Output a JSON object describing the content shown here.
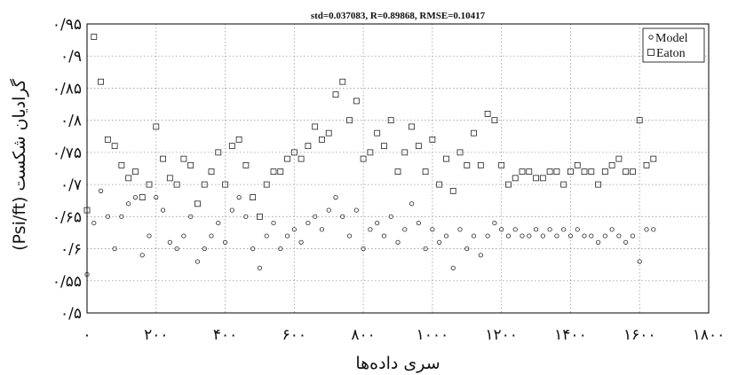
{
  "chart_data": {
    "type": "scatter",
    "title": "std=0.037083, R=0.89868, RMSE=0.10417",
    "xlabel": "سری داده‌ها",
    "ylabel": "گرادیان شکست  (Psi/ft)",
    "xlim": [
      0,
      1800
    ],
    "ylim": [
      0.5,
      0.95
    ],
    "x_ticks": [
      0,
      200,
      400,
      600,
      800,
      1000,
      1200,
      1400,
      1600,
      1800
    ],
    "x_tick_labels": [
      "۰",
      "۲۰۰",
      "۴۰۰",
      "۶۰۰",
      "۸۰۰",
      "۱۰۰۰",
      "۱۲۰۰",
      "۱۴۰۰",
      "۱۶۰۰",
      "۱۸۰۰"
    ],
    "y_ticks": [
      0.5,
      0.55,
      0.6,
      0.65,
      0.7,
      0.75,
      0.8,
      0.85,
      0.9,
      0.95
    ],
    "y_tick_labels": [
      "۰/۵",
      "۰/۵۵",
      "۰/۶",
      "۰/۶۵",
      "۰/۷",
      "۰/۷۵",
      "۰/۸",
      "۰/۸۵",
      "۰/۹",
      "۰/۹۵"
    ],
    "grid": true,
    "legend_position": "top-right",
    "series": [
      {
        "name": "Model",
        "marker": "circle",
        "x": [
          0,
          20,
          40,
          60,
          80,
          100,
          120,
          140,
          160,
          180,
          200,
          220,
          240,
          260,
          280,
          300,
          320,
          340,
          360,
          380,
          400,
          420,
          440,
          460,
          480,
          500,
          520,
          540,
          560,
          580,
          600,
          620,
          640,
          660,
          680,
          700,
          720,
          740,
          760,
          780,
          800,
          820,
          840,
          860,
          880,
          900,
          920,
          940,
          960,
          980,
          1000,
          1020,
          1040,
          1060,
          1080,
          1100,
          1120,
          1140,
          1160,
          1180,
          1200,
          1220,
          1240,
          1260,
          1280,
          1300,
          1320,
          1340,
          1360,
          1380,
          1400,
          1420,
          1440,
          1460,
          1480,
          1500,
          1520,
          1540,
          1560,
          1580,
          1600,
          1620,
          1640
        ],
        "y": [
          0.56,
          0.64,
          0.69,
          0.65,
          0.6,
          0.65,
          0.67,
          0.68,
          0.59,
          0.62,
          0.68,
          0.66,
          0.61,
          0.6,
          0.62,
          0.65,
          0.58,
          0.6,
          0.62,
          0.64,
          0.61,
          0.66,
          0.68,
          0.65,
          0.6,
          0.57,
          0.62,
          0.64,
          0.6,
          0.62,
          0.63,
          0.61,
          0.64,
          0.65,
          0.63,
          0.66,
          0.68,
          0.65,
          0.62,
          0.66,
          0.6,
          0.63,
          0.64,
          0.62,
          0.65,
          0.61,
          0.63,
          0.67,
          0.64,
          0.6,
          0.63,
          0.61,
          0.62,
          0.57,
          0.63,
          0.6,
          0.62,
          0.59,
          0.62,
          0.64,
          0.63,
          0.62,
          0.63,
          0.62,
          0.62,
          0.63,
          0.62,
          0.63,
          0.62,
          0.63,
          0.62,
          0.63,
          0.62,
          0.62,
          0.61,
          0.62,
          0.63,
          0.62,
          0.61,
          0.62,
          0.58,
          0.63,
          0.63
        ]
      },
      {
        "name": "Eaton",
        "marker": "square",
        "x": [
          0,
          20,
          40,
          60,
          80,
          100,
          120,
          140,
          160,
          180,
          200,
          220,
          240,
          260,
          280,
          300,
          320,
          340,
          360,
          380,
          400,
          420,
          440,
          460,
          480,
          500,
          520,
          540,
          560,
          580,
          600,
          620,
          640,
          660,
          680,
          700,
          720,
          740,
          760,
          780,
          800,
          820,
          840,
          860,
          880,
          900,
          920,
          940,
          960,
          980,
          1000,
          1020,
          1040,
          1060,
          1080,
          1100,
          1120,
          1140,
          1160,
          1180,
          1200,
          1220,
          1240,
          1260,
          1280,
          1300,
          1320,
          1340,
          1360,
          1380,
          1400,
          1420,
          1440,
          1460,
          1480,
          1500,
          1520,
          1540,
          1560,
          1580,
          1600,
          1620,
          1640
        ],
        "y": [
          0.66,
          0.93,
          0.86,
          0.77,
          0.76,
          0.73,
          0.71,
          0.72,
          0.68,
          0.7,
          0.79,
          0.74,
          0.71,
          0.7,
          0.74,
          0.73,
          0.67,
          0.7,
          0.72,
          0.75,
          0.7,
          0.76,
          0.77,
          0.73,
          0.68,
          0.65,
          0.7,
          0.72,
          0.72,
          0.74,
          0.75,
          0.74,
          0.76,
          0.79,
          0.77,
          0.78,
          0.84,
          0.86,
          0.8,
          0.83,
          0.74,
          0.75,
          0.78,
          0.76,
          0.8,
          0.72,
          0.75,
          0.79,
          0.76,
          0.72,
          0.77,
          0.7,
          0.74,
          0.69,
          0.75,
          0.73,
          0.78,
          0.73,
          0.81,
          0.8,
          0.73,
          0.7,
          0.71,
          0.72,
          0.72,
          0.71,
          0.71,
          0.72,
          0.72,
          0.7,
          0.72,
          0.73,
          0.72,
          0.72,
          0.7,
          0.72,
          0.73,
          0.74,
          0.72,
          0.72,
          0.8,
          0.73,
          0.74
        ]
      }
    ]
  }
}
